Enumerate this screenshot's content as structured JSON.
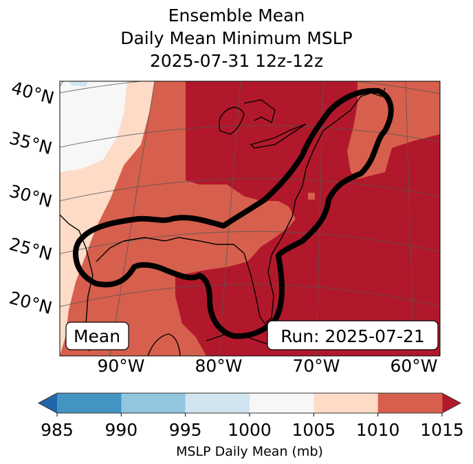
{
  "title": {
    "line1": "Ensemble Mean",
    "line2": "Daily Mean Minimum MSLP",
    "line3": "2025-07-31 12z-12z"
  },
  "chart_data": {
    "type": "heatmap",
    "title": "Ensemble Mean Daily Mean Minimum MSLP 2025-07-31 12z-12z",
    "lat_labels": [
      "40°N",
      "35°N",
      "30°N",
      "25°N",
      "20°N"
    ],
    "lon_labels": [
      "90°W",
      "80°W",
      "70°W",
      "60°W"
    ],
    "colorbar": {
      "label": "MSLP Daily Mean (mb)",
      "ticks": [
        "985",
        "990",
        "995",
        "1000",
        "1005",
        "1010",
        "1015"
      ],
      "levels": [
        985,
        990,
        995,
        1000,
        1005,
        1010,
        1015
      ],
      "colors": [
        "#4393c3",
        "#92c5de",
        "#d1e5f0",
        "#f7f7f7",
        "#fddbc7",
        "#d6604d"
      ],
      "extend_low_color": "#2166ac",
      "extend_high_color": "#b2182b",
      "extend": "both",
      "placement": "bottom"
    },
    "fields": {
      "dominant": ">1015 over eastern US and western Atlantic",
      "contour": "single thick black contour enclosing Gulf coast and US East Coast"
    }
  },
  "annotations": {
    "left_box": "Mean",
    "right_box": "Run: 2025-07-21"
  }
}
